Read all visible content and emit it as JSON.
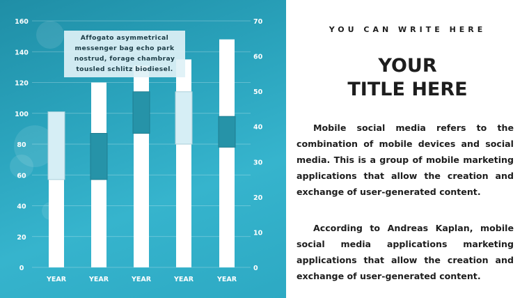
{
  "colors": {
    "panel_bg": "#2aa3bc",
    "bar_white": "#ffffff",
    "box_light": "#d6eef5",
    "box_dark": "#2693a8",
    "axis_text": "#ffffff",
    "body_text": "#1d1d1d"
  },
  "callout": {
    "text": "Affogato asymmetrical messenger bag echo park nostrud, forage chambray tousled schlitz biodiesel."
  },
  "right_panel": {
    "subtitle": "YOU CAN WRITE HERE",
    "title": "YOUR\nTITLE HERE",
    "paragraphs": [
      "Mobile social media refers to the combination of mobile devices and social media. This is a group of mobile marketing applications that allow the creation and exchange of user-generated content.",
      "According to Andreas Kaplan, mobile social media applications marketing applications that allow the creation and exchange of user-generated content."
    ]
  },
  "chart_data": {
    "type": "bar",
    "categories": [
      "YEAR",
      "YEAR",
      "YEAR",
      "YEAR",
      "YEAR"
    ],
    "y_left": {
      "min": 0,
      "max": 160,
      "ticks": [
        0,
        20,
        40,
        60,
        80,
        100,
        120,
        140,
        160
      ]
    },
    "y_right": {
      "min": 0,
      "max": 70,
      "ticks": [
        0,
        10,
        20,
        30,
        40,
        50,
        60,
        70
      ]
    },
    "grid": true,
    "series": [
      {
        "values": [
          57,
          120,
          131,
          135,
          148
        ]
      },
      {
        "values": [
          [
            57,
            101
          ],
          [
            57,
            87
          ],
          [
            87,
            114
          ],
          [
            80,
            114
          ],
          [
            78,
            98
          ]
        ]
      }
    ],
    "box_styles": [
      "light",
      "dark",
      "dark",
      "light",
      "dark"
    ]
  }
}
